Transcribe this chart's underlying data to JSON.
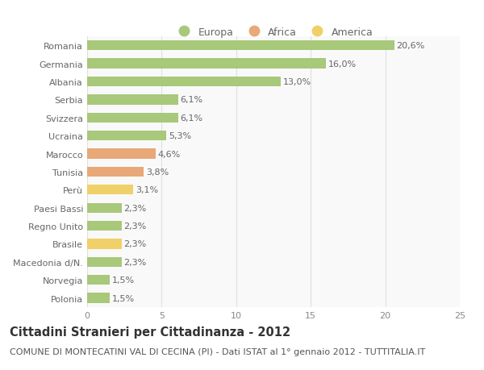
{
  "categories": [
    "Romania",
    "Germania",
    "Albania",
    "Serbia",
    "Svizzera",
    "Ucraina",
    "Marocco",
    "Tunisia",
    "Perù",
    "Paesi Bassi",
    "Regno Unito",
    "Brasile",
    "Macedonia d/N.",
    "Norvegia",
    "Polonia"
  ],
  "values": [
    20.6,
    16.0,
    13.0,
    6.1,
    6.1,
    5.3,
    4.6,
    3.8,
    3.1,
    2.3,
    2.3,
    2.3,
    2.3,
    1.5,
    1.5
  ],
  "labels": [
    "20,6%",
    "16,0%",
    "13,0%",
    "6,1%",
    "6,1%",
    "5,3%",
    "4,6%",
    "3,8%",
    "3,1%",
    "2,3%",
    "2,3%",
    "2,3%",
    "2,3%",
    "1,5%",
    "1,5%"
  ],
  "continent": [
    "Europa",
    "Europa",
    "Europa",
    "Europa",
    "Europa",
    "Europa",
    "Africa",
    "Africa",
    "America",
    "Europa",
    "Europa",
    "America",
    "Europa",
    "Europa",
    "Europa"
  ],
  "colors": {
    "Europa": "#a8c87a",
    "Africa": "#e8a878",
    "America": "#f0d068"
  },
  "xlim": [
    0,
    25
  ],
  "xticks": [
    0,
    5,
    10,
    15,
    20,
    25
  ],
  "background_color": "#ffffff",
  "plot_bg_color": "#f9f9f9",
  "grid_color": "#e0e0e0",
  "title": "Cittadini Stranieri per Cittadinanza - 2012",
  "subtitle": "COMUNE DI MONTECATINI VAL DI CECINA (PI) - Dati ISTAT al 1° gennaio 2012 - TUTTITALIA.IT",
  "bar_height": 0.55,
  "title_fontsize": 10.5,
  "subtitle_fontsize": 8,
  "label_fontsize": 8,
  "tick_fontsize": 8,
  "legend_fontsize": 9,
  "legend_items": [
    "Europa",
    "Africa",
    "America"
  ],
  "legend_colors_list": [
    "#a8c87a",
    "#e8a878",
    "#f0d068"
  ]
}
